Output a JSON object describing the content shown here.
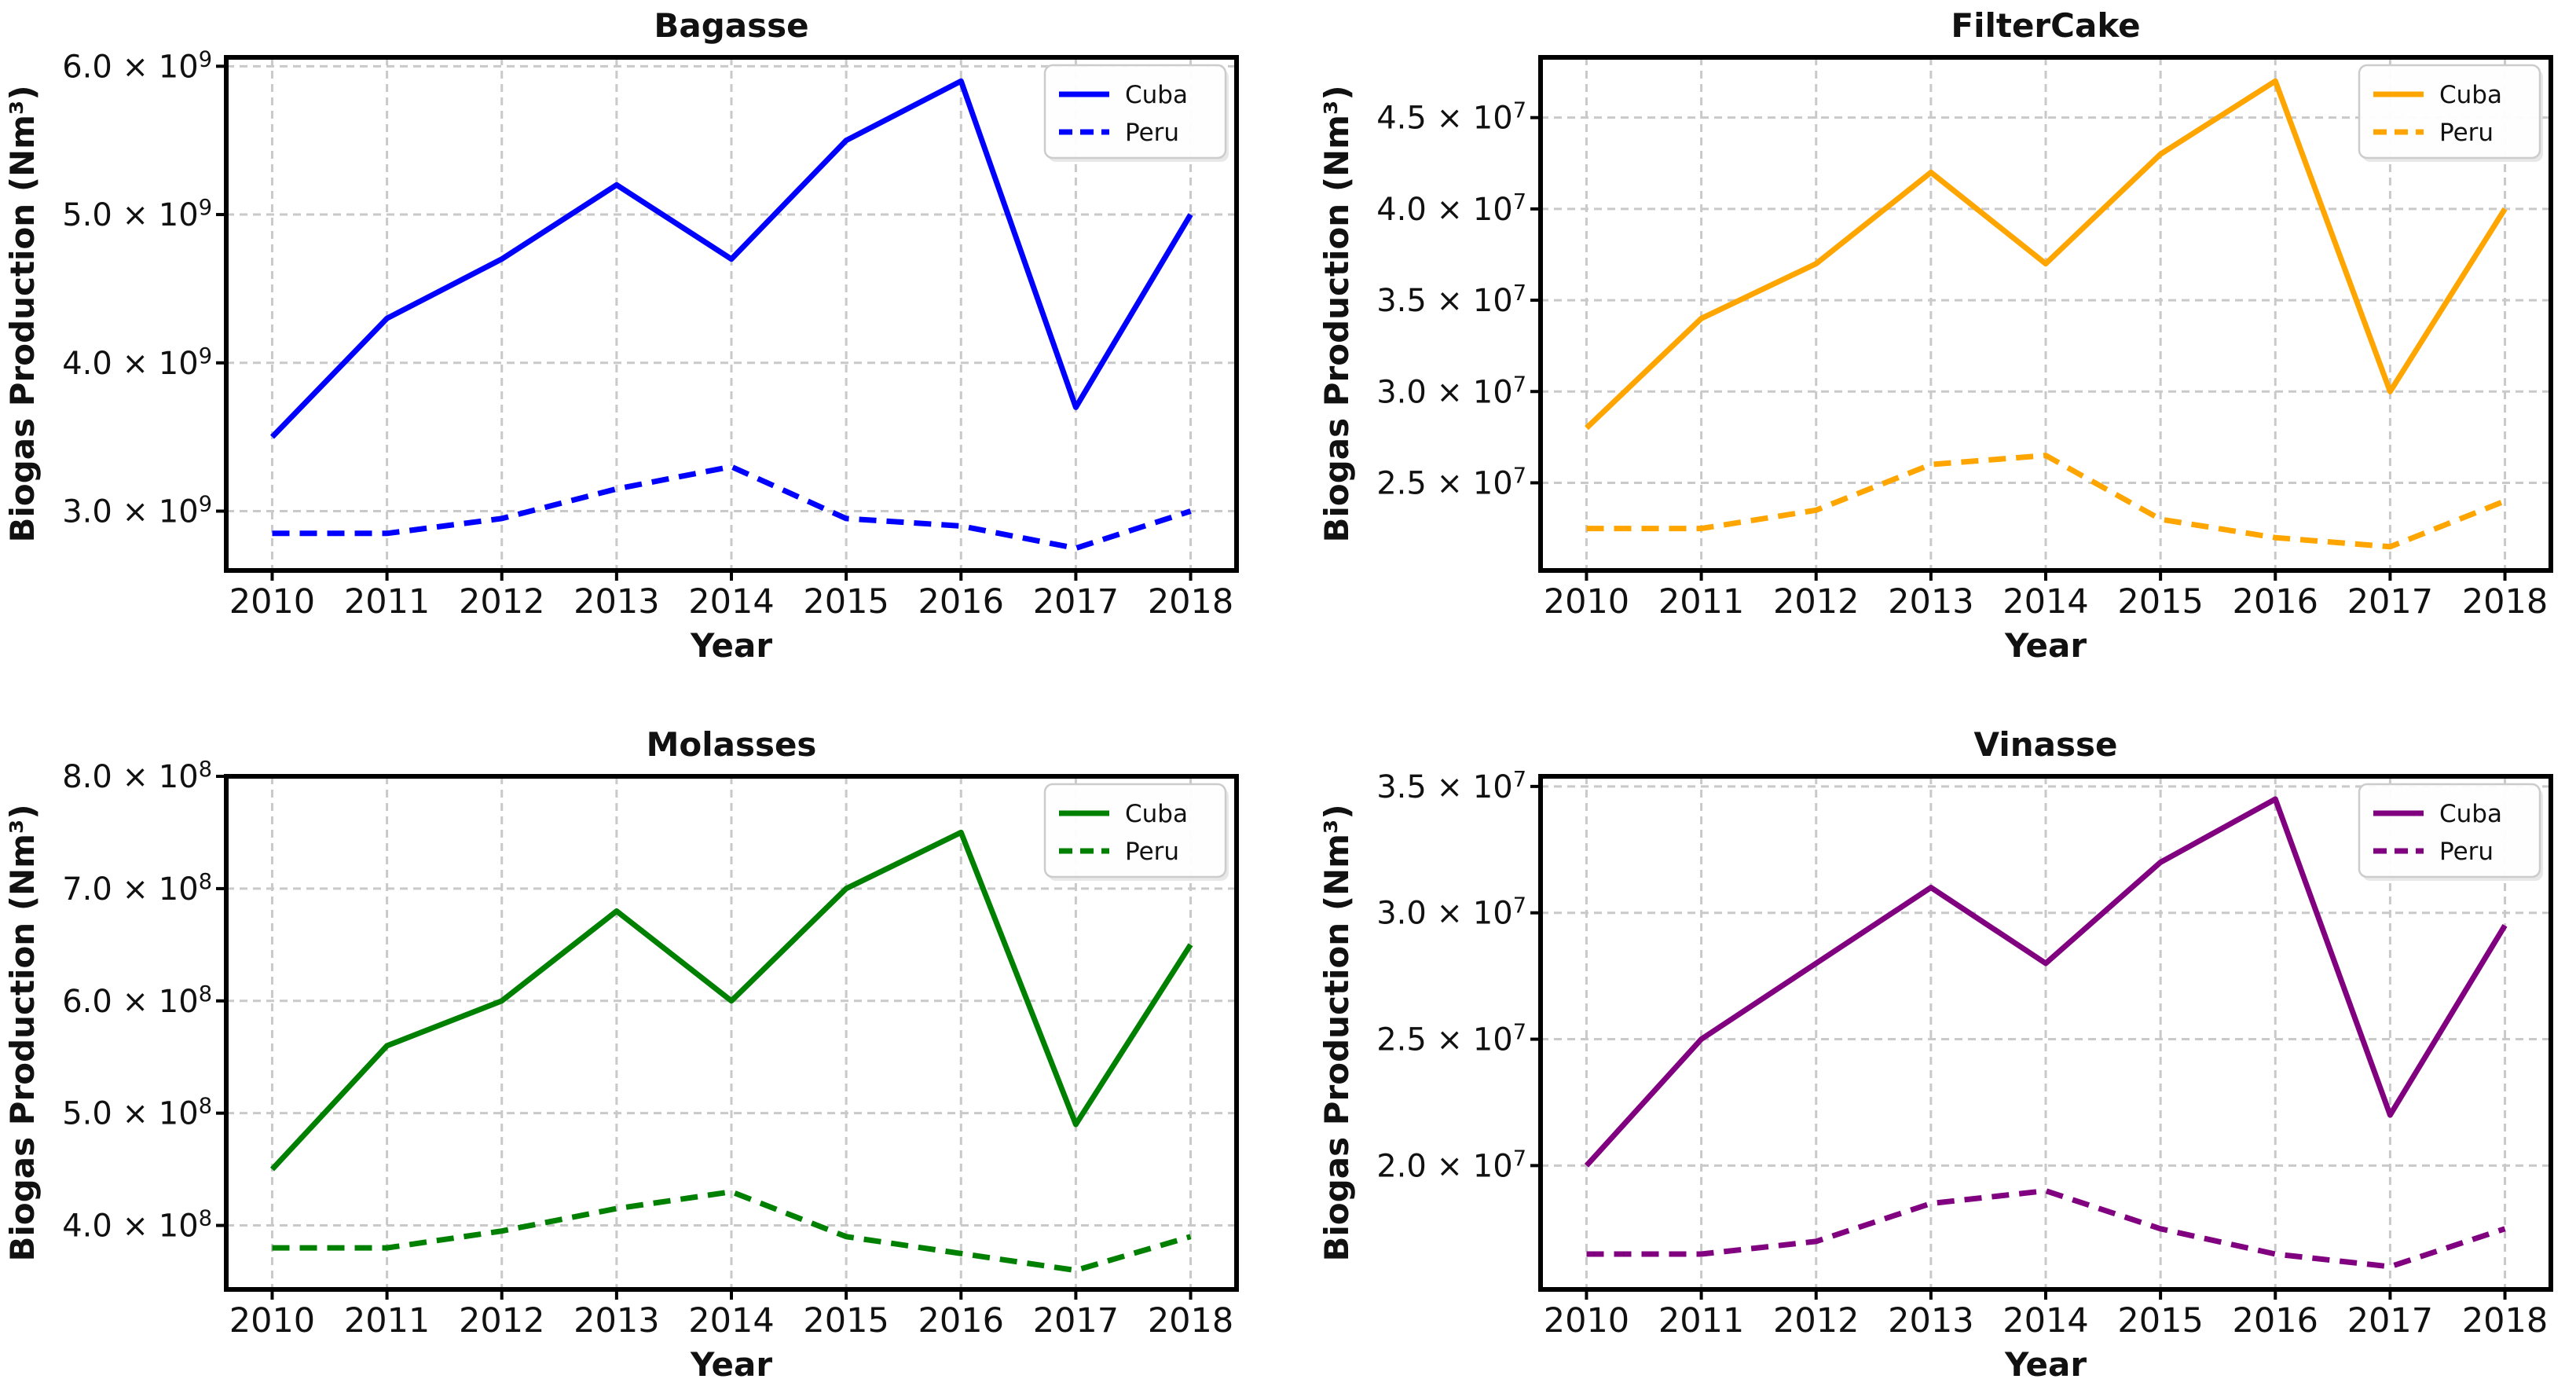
{
  "figure": {
    "background": "#ffffff",
    "text_color": "#111111",
    "title_color": "#2b2b2b",
    "grid_color": "#c9c9c9",
    "spine_color": "#000000",
    "legend_border_color": "#cccccc",
    "xlabel": "Year",
    "ylabel": "Biogas Production (Nm³)",
    "legend_entries": [
      "Cuba",
      "Peru"
    ]
  },
  "chart_data": [
    {
      "type": "line",
      "title": "Bagasse",
      "xlabel": "Year",
      "ylabel": "Biogas Production (Nm³)",
      "color": "#0000ff",
      "grid": true,
      "legend_position": "upper right",
      "x": [
        2010,
        2011,
        2012,
        2013,
        2014,
        2015,
        2016,
        2017,
        2018
      ],
      "xlim": [
        2009.6,
        2018.4
      ],
      "ylim": [
        2600000000.0,
        6060000000.0
      ],
      "yticks": [
        3000000000.0,
        4000000000.0,
        5000000000.0,
        6000000000.0
      ],
      "ytick_labels": [
        "3.0 × 10⁹",
        "4.0 × 10⁹",
        "5.0 × 10⁹",
        "6.0 × 10⁹"
      ],
      "series": [
        {
          "name": "Cuba",
          "line_style": "solid",
          "values": [
            3500000000.0,
            4300000000.0,
            4700000000.0,
            5200000000.0,
            4700000000.0,
            5500000000.0,
            5900000000.0,
            3700000000.0,
            5000000000.0
          ]
        },
        {
          "name": "Peru",
          "line_style": "dashed",
          "values": [
            2850000000.0,
            2850000000.0,
            2950000000.0,
            3150000000.0,
            3300000000.0,
            2950000000.0,
            2900000000.0,
            2750000000.0,
            3000000000.0
          ]
        }
      ]
    },
    {
      "type": "line",
      "title": "FilterCake",
      "xlabel": "Year",
      "ylabel": "Biogas Production (Nm³)",
      "color": "#ffa500",
      "grid": true,
      "legend_position": "upper right",
      "x": [
        2010,
        2011,
        2012,
        2013,
        2014,
        2015,
        2016,
        2017,
        2018
      ],
      "xlim": [
        2009.6,
        2018.4
      ],
      "ylim": [
        20200000.0,
        48300000.0
      ],
      "yticks": [
        25000000.0,
        30000000.0,
        35000000.0,
        40000000.0,
        45000000.0
      ],
      "ytick_labels": [
        "2.5 × 10⁷",
        "3.0 × 10⁷",
        "3.5 × 10⁷",
        "4.0 × 10⁷",
        "4.5 × 10⁷"
      ],
      "series": [
        {
          "name": "Cuba",
          "line_style": "solid",
          "values": [
            28000000.0,
            34000000.0,
            37000000.0,
            42000000.0,
            37000000.0,
            43000000.0,
            47000000.0,
            30000000.0,
            40000000.0
          ]
        },
        {
          "name": "Peru",
          "line_style": "dashed",
          "values": [
            22500000.0,
            22500000.0,
            23500000.0,
            26000000.0,
            26500000.0,
            23000000.0,
            22000000.0,
            21500000.0,
            24000000.0
          ]
        }
      ]
    },
    {
      "type": "line",
      "title": "Molasses",
      "xlabel": "Year",
      "ylabel": "Biogas Production (Nm³)",
      "color": "#008000",
      "grid": true,
      "legend_position": "upper right",
      "x": [
        2010,
        2011,
        2012,
        2013,
        2014,
        2015,
        2016,
        2017,
        2018
      ],
      "xlim": [
        2009.6,
        2018.4
      ],
      "ylim": [
        343000000.0,
        800000000.0
      ],
      "yticks": [
        400000000.0,
        500000000.0,
        600000000.0,
        700000000.0,
        800000000.0
      ],
      "ytick_labels": [
        "4.0 × 10⁸",
        "5.0 × 10⁸",
        "6.0 × 10⁸",
        "7.0 × 10⁸",
        "8.0 × 10⁸"
      ],
      "series": [
        {
          "name": "Cuba",
          "line_style": "solid",
          "values": [
            450000000.0,
            560000000.0,
            600000000.0,
            680000000.0,
            600000000.0,
            700000000.0,
            750000000.0,
            490000000.0,
            650000000.0
          ]
        },
        {
          "name": "Peru",
          "line_style": "dashed",
          "values": [
            380000000.0,
            380000000.0,
            395000000.0,
            415000000.0,
            430000000.0,
            390000000.0,
            375000000.0,
            360000000.0,
            390000000.0
          ]
        }
      ]
    },
    {
      "type": "line",
      "title": "Vinasse",
      "xlabel": "Year",
      "ylabel": "Biogas Production (Nm³)",
      "color": "#800080",
      "grid": true,
      "legend_position": "upper right",
      "x": [
        2010,
        2011,
        2012,
        2013,
        2014,
        2015,
        2016,
        2017,
        2018
      ],
      "xlim": [
        2009.6,
        2018.4
      ],
      "ylim": [
        15100000.0,
        35400000.0
      ],
      "yticks": [
        20000000.0,
        25000000.0,
        30000000.0,
        35000000.0
      ],
      "ytick_labels": [
        "2.0 × 10⁷",
        "2.5 × 10⁷",
        "3.0 × 10⁷",
        "3.5 × 10⁷"
      ],
      "series": [
        {
          "name": "Cuba",
          "line_style": "solid",
          "values": [
            20000000.0,
            25000000.0,
            28000000.0,
            31000000.0,
            28000000.0,
            32000000.0,
            34500000.0,
            22000000.0,
            29500000.0
          ]
        },
        {
          "name": "Peru",
          "line_style": "dashed",
          "values": [
            16500000.0,
            16500000.0,
            17000000.0,
            18500000.0,
            19000000.0,
            17500000.0,
            16500000.0,
            16000000.0,
            17500000.0
          ]
        }
      ]
    }
  ]
}
